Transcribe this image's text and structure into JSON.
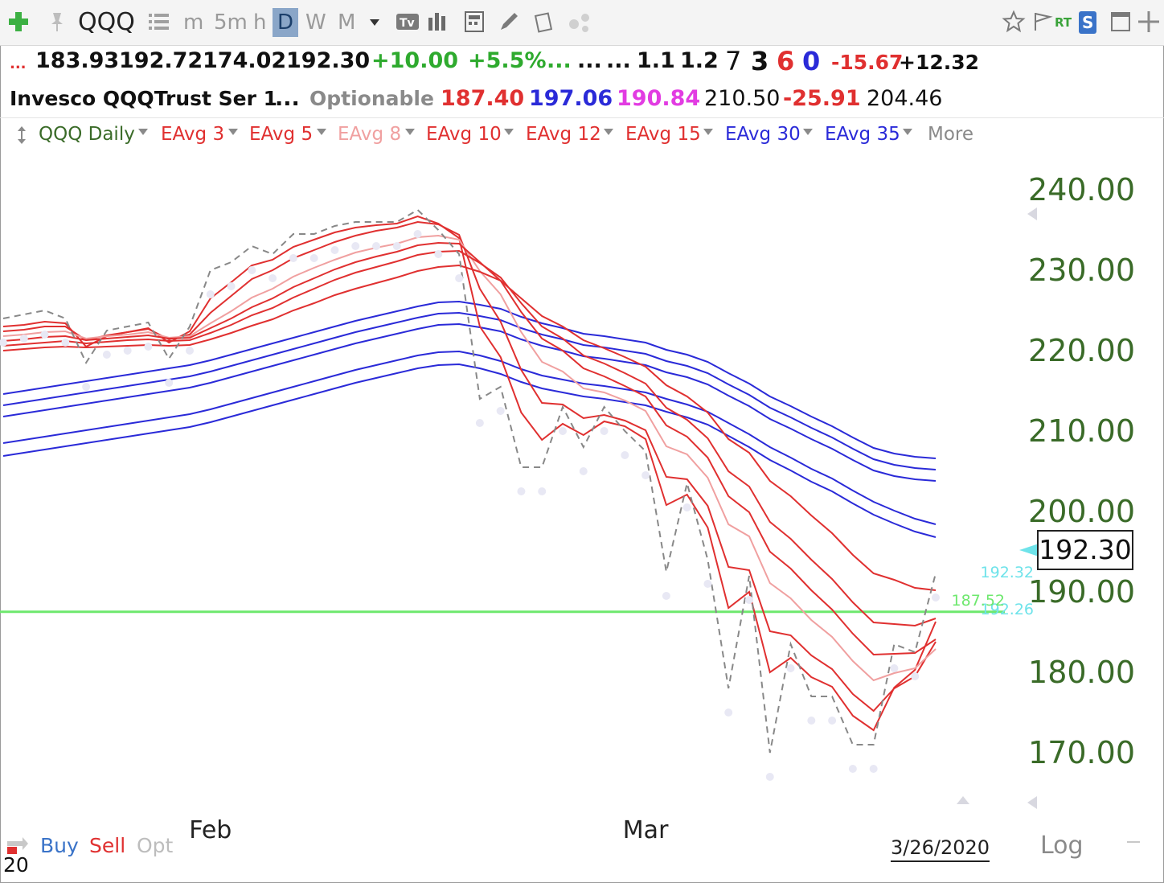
{
  "toolbar": {
    "symbol": "QQQ",
    "intervals": [
      "m",
      "5m",
      "h",
      "D",
      "W",
      "M"
    ],
    "selected_interval": "D",
    "rt_label": "RT",
    "s_label": "S"
  },
  "quote": {
    "row1": {
      "ellipsis1": "...",
      "open": "183.93",
      "high": "192.72",
      "low": "174.02",
      "close": "192.30",
      "change": "+10.00",
      "change_pct": "+5.5%",
      "e1": "...",
      "e2": "...",
      "e3": "...",
      "r1": "1.1",
      "r2": "1.2",
      "c7": "7",
      "c3": "3",
      "c6": "6",
      "c0": "0",
      "neg": "-15.67",
      "pos": "+12.32"
    },
    "row2": {
      "name": "Invesco QQQTrust Ser 1",
      "ellipsis": "...",
      "optionable": "Optionable",
      "v1": "187.40",
      "v2": "197.06",
      "v3": "190.84",
      "v4": "210.50",
      "v5": "-25.91",
      "v6": "204.46"
    }
  },
  "legend": {
    "items": [
      {
        "label": "QQQ Daily",
        "color": "#3a6b28"
      },
      {
        "label": "EAvg 3",
        "color": "#e03030"
      },
      {
        "label": "EAvg 5",
        "color": "#e03030"
      },
      {
        "label": "EAvg 8",
        "color": "#f0a0a0"
      },
      {
        "label": "EAvg 10",
        "color": "#e03030"
      },
      {
        "label": "EAvg 12",
        "color": "#e03030"
      },
      {
        "label": "EAvg 15",
        "color": "#e03030"
      },
      {
        "label": "EAvg 30",
        "color": "#2a2ad8"
      },
      {
        "label": "EAvg 35",
        "color": "#2a2ad8"
      }
    ],
    "more": "More"
  },
  "chart_data": {
    "type": "line",
    "y_scale": "linear",
    "ylim": [
      164,
      244
    ],
    "yticks": [
      "240.00",
      "230.00",
      "220.00",
      "210.00",
      "200.00",
      "190.00",
      "180.00",
      "170.00"
    ],
    "x_labels": [
      "Feb",
      "Mar"
    ],
    "date_label": "3/26/2020",
    "last_price_box": "192.30",
    "price_tag_top": "192.32",
    "price_tag_bottom": "192.26",
    "hline_label": "187.52",
    "hline_value": 187.52,
    "hline_color": "#6ee86e",
    "price_color": "#888888",
    "price_series": {
      "name": "QQQ Daily",
      "values": [
        224,
        224.5,
        225,
        224,
        218.5,
        222.5,
        223,
        223.5,
        219,
        223,
        230,
        231,
        233,
        232,
        234.5,
        234.5,
        235.5,
        236,
        236,
        236,
        237.5,
        235,
        232,
        214,
        215.5,
        205.5,
        205.5,
        213,
        208,
        213,
        210,
        207.5,
        192.5,
        203.5,
        194,
        178,
        192,
        170,
        183.5,
        177,
        177,
        171,
        171,
        183.5,
        182.5,
        192.3
      ]
    },
    "red_series": [
      {
        "name": "EAvg 3",
        "color": "#e03030",
        "values": [
          223,
          223.2,
          223.6,
          223.4,
          220.5,
          221.8,
          222.3,
          222.8,
          221,
          222.4,
          226.5,
          228.5,
          230.6,
          231.3,
          232.9,
          233.8,
          234.7,
          235.3,
          235.6,
          235.8,
          236.7,
          235.8,
          234,
          223,
          219.2,
          212.3,
          208.9,
          210.9,
          209.5,
          211.2,
          210.6,
          209,
          200.8,
          202.1,
          198,
          188,
          190,
          180,
          181.8,
          179.4,
          178.2,
          174.6,
          172.8,
          178.1,
          180.3,
          186.3
        ]
      },
      {
        "name": "EAvg 5",
        "color": "#e03030",
        "values": [
          222.4,
          222.6,
          223,
          223,
          221.3,
          221.9,
          222.3,
          222.7,
          221.4,
          222,
          224.7,
          226.8,
          228.9,
          230,
          231.5,
          232.5,
          233.5,
          234.3,
          234.9,
          235.3,
          236,
          235.7,
          234.4,
          227.7,
          223.6,
          217.6,
          213.5,
          213.3,
          211.6,
          212,
          211.3,
          210.1,
          204.3,
          204,
          200.7,
          193.1,
          192.7,
          185.1,
          184.6,
          182.1,
          180.4,
          177.3,
          175.2,
          178,
          179.5,
          183.8
        ]
      },
      {
        "name": "EAvg 8",
        "color": "#f0a0a0",
        "values": [
          221.8,
          222,
          222.3,
          222.4,
          221.5,
          221.8,
          222,
          222.3,
          221.6,
          221.8,
          223.4,
          224.9,
          226.6,
          227.7,
          229.2,
          230.3,
          231.3,
          232.2,
          232.8,
          233.3,
          234.1,
          234.3,
          233.8,
          229.9,
          227,
          222.3,
          218.6,
          217.4,
          215.3,
          214.8,
          213.8,
          212.5,
          208.1,
          207.1,
          204.2,
          198.4,
          196.9,
          191.1,
          189.2,
          186.5,
          184.4,
          181.4,
          179,
          179.9,
          180.5,
          182.9
        ]
      },
      {
        "name": "EAvg 10",
        "color": "#e03030",
        "values": [
          221.2,
          221.4,
          221.7,
          221.8,
          221.3,
          221.5,
          221.7,
          221.9,
          221.5,
          221.6,
          222.8,
          224,
          225.4,
          226.5,
          227.9,
          229,
          230.1,
          231,
          231.7,
          232.3,
          233.1,
          233.4,
          233.3,
          231,
          228.7,
          224.8,
          221.5,
          220,
          217.8,
          216.8,
          215.6,
          214.3,
          210.7,
          209.3,
          206.7,
          201.9,
          199.9,
          195,
          192.9,
          190.2,
          187.8,
          184.8,
          182.2,
          182.3,
          182.4,
          184.1
        ]
      },
      {
        "name": "EAvg 12",
        "color": "#e03030",
        "values": [
          220.6,
          220.8,
          221,
          221.2,
          220.9,
          221.1,
          221.3,
          221.4,
          221.2,
          221.3,
          222.2,
          223.2,
          224.4,
          225.3,
          226.6,
          227.7,
          228.8,
          229.7,
          230.4,
          231.1,
          231.9,
          232.3,
          232.4,
          230.9,
          229.1,
          225.9,
          223,
          221.5,
          219.4,
          218.4,
          217.2,
          215.9,
          212.9,
          211.4,
          209.1,
          205,
          203.1,
          198.7,
          196.6,
          194,
          191.6,
          188.7,
          186.2,
          186,
          185.8,
          186.7
        ]
      },
      {
        "name": "EAvg 15",
        "color": "#e03030",
        "values": [
          220,
          220.2,
          220.4,
          220.5,
          220.4,
          220.5,
          220.6,
          220.7,
          220.6,
          220.7,
          221.4,
          222.2,
          223.1,
          223.9,
          225,
          225.9,
          226.9,
          227.7,
          228.4,
          229.1,
          229.9,
          230.4,
          230.6,
          229.8,
          228.7,
          226.5,
          224.3,
          223,
          221.3,
          220.3,
          219.2,
          218,
          215.7,
          214.3,
          212.3,
          209,
          207.3,
          203.8,
          201.9,
          199.5,
          197.3,
          194.6,
          192.3,
          191.5,
          190.5,
          190.2
        ]
      }
    ],
    "blue_series": [
      {
        "name": "EAvg 30",
        "color": "#2a2ad8",
        "values": [
          211.8,
          212.2,
          212.6,
          213,
          213.4,
          213.8,
          214.2,
          214.6,
          215,
          215.4,
          216,
          216.7,
          217.4,
          218.1,
          218.8,
          219.5,
          220.2,
          220.9,
          221.5,
          222.1,
          222.7,
          223.2,
          223.3,
          222.9,
          222.4,
          221.4,
          220.6,
          220,
          219.3,
          219,
          218.6,
          218.2,
          217.3,
          216.7,
          215.8,
          214.4,
          213.1,
          211.5,
          210.3,
          209,
          207.8,
          206.4,
          205.1,
          204.4,
          204,
          203.8
        ]
      },
      {
        "name": "EAvg 35",
        "color": "#2a2ad8",
        "values": [
          208.5,
          208.9,
          209.3,
          209.7,
          210.1,
          210.5,
          210.9,
          211.3,
          211.7,
          212.1,
          212.7,
          213.4,
          214.1,
          214.8,
          215.5,
          216.2,
          216.9,
          217.6,
          218.2,
          218.8,
          219.4,
          219.8,
          219.9,
          219.4,
          218.7,
          217.7,
          216.9,
          216.4,
          215.9,
          215.6,
          215.2,
          214.8,
          214,
          213.3,
          212.4,
          211,
          209.6,
          208,
          206.7,
          205.3,
          204.1,
          202.6,
          201.2,
          200.1,
          199.1,
          198.4
        ]
      }
    ]
  },
  "bottom": {
    "buy": "Buy",
    "sell": "Sell",
    "opt": "Opt",
    "log": "Log",
    "year_partial": "20"
  }
}
